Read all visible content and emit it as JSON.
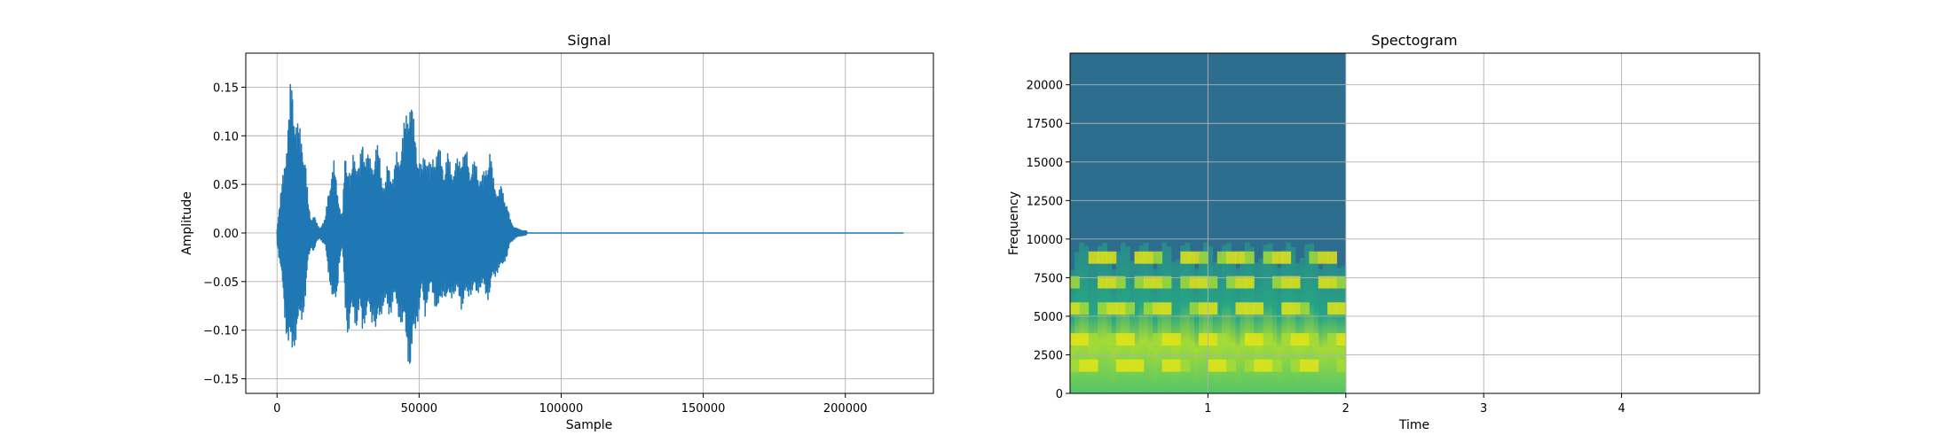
{
  "chart_data": [
    {
      "type": "line",
      "title": "Signal",
      "xlabel": "Sample",
      "ylabel": "Amplitude",
      "xlim": [
        -11000,
        231000
      ],
      "ylim": [
        -0.165,
        0.185
      ],
      "xticks": [
        0,
        50000,
        100000,
        150000,
        200000
      ],
      "yticks": [
        -0.15,
        -0.1,
        -0.05,
        0.0,
        0.05,
        0.1,
        0.15
      ],
      "xtick_labels": [
        "0",
        "50000",
        "100000",
        "150000",
        "200000"
      ],
      "ytick_labels": [
        "−0.15",
        "−0.10",
        "−0.05",
        "0.00",
        "0.05",
        "0.10",
        "0.15"
      ],
      "grid": true,
      "color": "#1f77b4",
      "series": [
        {
          "x": [
            0,
            2000,
            3000,
            4000,
            5000,
            6000,
            7000,
            8000,
            9000,
            10000,
            11000,
            12000,
            13000,
            14000,
            15000,
            16000,
            17000,
            18000,
            19000,
            20000,
            21000,
            22000,
            23000,
            24000,
            25000,
            26000,
            27000,
            28000,
            29000,
            30000,
            31000,
            32000,
            33000,
            34000,
            35000,
            36000,
            37000,
            38000,
            39000,
            40000,
            41000,
            42000,
            43000,
            44000,
            45000,
            46000,
            47000,
            48000,
            49000,
            50000,
            51000,
            52000,
            53000,
            54000,
            55000,
            56000,
            57000,
            58000,
            59000,
            60000,
            61000,
            62000,
            63000,
            64000,
            65000,
            66000,
            67000,
            68000,
            69000,
            70000,
            71000,
            72000,
            73000,
            74000,
            75000,
            76000,
            77000,
            78000,
            79000,
            80000,
            81000,
            82000,
            83000,
            84000,
            85000,
            86000,
            88000,
            100000,
            150000,
            200000,
            220500
          ],
          "upper": [
            0.005,
            0.06,
            0.09,
            0.12,
            0.168,
            0.14,
            0.12,
            0.11,
            0.1,
            0.08,
            0.03,
            0.015,
            0.02,
            0.01,
            0.005,
            0.01,
            0.015,
            0.045,
            0.06,
            0.075,
            0.055,
            0.03,
            0.015,
            0.09,
            0.075,
            0.06,
            0.09,
            0.08,
            0.07,
            0.1,
            0.09,
            0.085,
            0.075,
            0.08,
            0.095,
            0.085,
            0.06,
            0.05,
            0.075,
            0.07,
            0.06,
            0.085,
            0.085,
            0.1,
            0.12,
            0.14,
            0.148,
            0.12,
            0.1,
            0.08,
            0.07,
            0.09,
            0.085,
            0.07,
            0.085,
            0.09,
            0.09,
            0.08,
            0.07,
            0.085,
            0.075,
            0.07,
            0.075,
            0.08,
            0.09,
            0.085,
            0.085,
            0.07,
            0.075,
            0.075,
            0.065,
            0.06,
            0.065,
            0.08,
            0.09,
            0.06,
            0.05,
            0.045,
            0.05,
            0.04,
            0.03,
            0.015,
            0.008,
            0.006,
            0.004,
            0.003,
            0.002,
            0.0,
            0.0,
            0.0,
            0.0
          ],
          "lower": [
            -0.01,
            -0.06,
            -0.1,
            -0.125,
            -0.135,
            -0.12,
            -0.11,
            -0.1,
            -0.09,
            -0.07,
            -0.03,
            -0.015,
            -0.02,
            -0.01,
            -0.005,
            -0.01,
            -0.015,
            -0.04,
            -0.06,
            -0.085,
            -0.07,
            -0.03,
            -0.015,
            -0.08,
            -0.11,
            -0.095,
            -0.09,
            -0.1,
            -0.085,
            -0.11,
            -0.09,
            -0.085,
            -0.1,
            -0.09,
            -0.11,
            -0.1,
            -0.08,
            -0.075,
            -0.095,
            -0.085,
            -0.07,
            -0.085,
            -0.09,
            -0.1,
            -0.11,
            -0.13,
            -0.148,
            -0.12,
            -0.1,
            -0.085,
            -0.065,
            -0.09,
            -0.07,
            -0.065,
            -0.07,
            -0.08,
            -0.09,
            -0.07,
            -0.065,
            -0.08,
            -0.07,
            -0.065,
            -0.07,
            -0.07,
            -0.08,
            -0.075,
            -0.07,
            -0.065,
            -0.065,
            -0.07,
            -0.06,
            -0.06,
            -0.065,
            -0.07,
            -0.065,
            -0.05,
            -0.045,
            -0.04,
            -0.04,
            -0.03,
            -0.025,
            -0.012,
            -0.008,
            -0.005,
            -0.004,
            -0.003,
            -0.002,
            0.0,
            0.0,
            0.0,
            0.0
          ]
        }
      ]
    },
    {
      "type": "heatmap",
      "title": "Spectogram",
      "xlabel": "Time",
      "ylabel": "Frequency",
      "xlim": [
        0.0,
        5.0
      ],
      "ylim": [
        0,
        22050
      ],
      "xticks": [
        1,
        2,
        3,
        4
      ],
      "yticks": [
        0,
        2500,
        5000,
        7500,
        10000,
        12500,
        15000,
        17500,
        20000
      ],
      "xtick_labels": [
        "1",
        "2",
        "3",
        "4"
      ],
      "ytick_labels": [
        "0",
        "2500",
        "5000",
        "7500",
        "10000",
        "12500",
        "15000",
        "17500",
        "20000"
      ],
      "grid": true,
      "data_extent_time": [
        0.0,
        2.0
      ],
      "background_color": "#2d6e8e",
      "harmonic_bands_hz": [
        1800,
        3500,
        5500,
        7200,
        8800
      ],
      "colors": [
        "#2d6e8e",
        "#2a8a8a",
        "#27a584",
        "#52c569",
        "#a5db36",
        "#e3e418"
      ]
    }
  ]
}
